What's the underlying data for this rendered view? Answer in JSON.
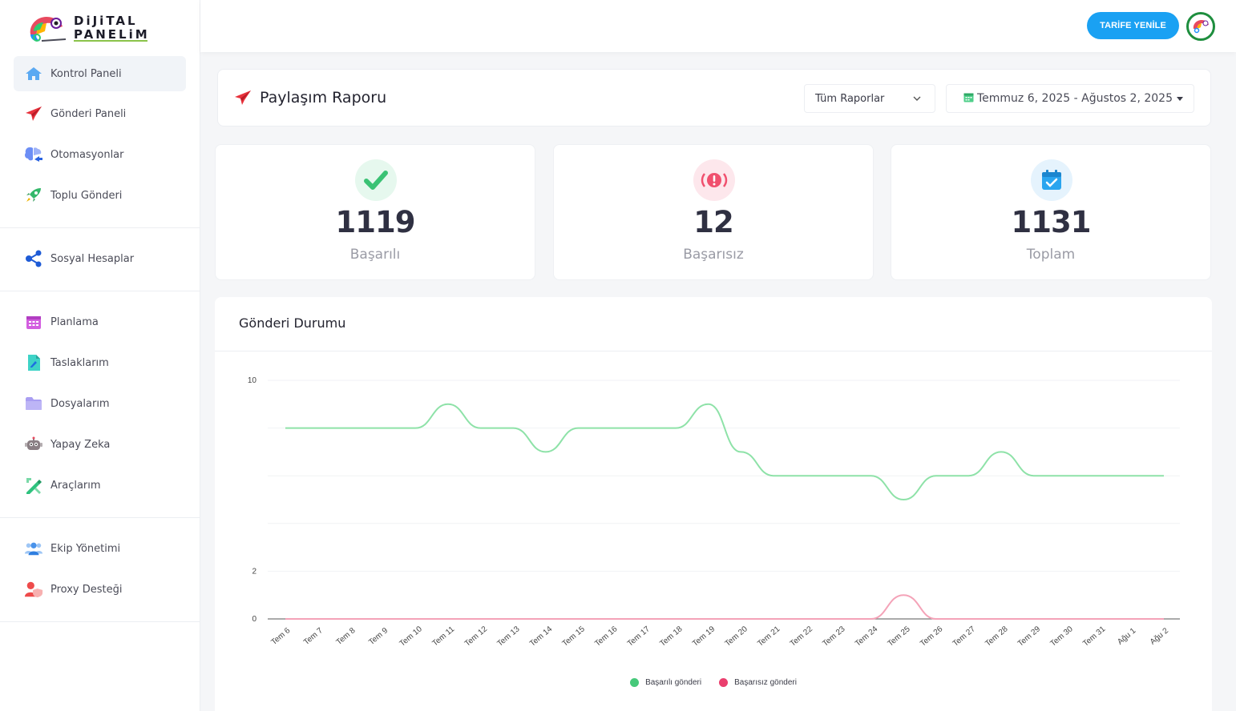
{
  "brand": {
    "line1": "DiJiTAL",
    "line2": "PANELiM"
  },
  "sidebar": {
    "items": [
      {
        "label": "Kontrol Paneli",
        "icon": "home-icon",
        "active": true
      },
      {
        "label": "Gönderi Paneli",
        "icon": "paper-plane-icon"
      },
      {
        "label": "Otomasyonlar",
        "icon": "brain-icon"
      },
      {
        "label": "Toplu Gönderi",
        "icon": "rocket-icon"
      },
      {
        "label": "Sosyal Hesaplar",
        "icon": "share-icon"
      },
      {
        "label": "Planlama",
        "icon": "calendar-icon"
      },
      {
        "label": "Taslaklarım",
        "icon": "draft-file-icon"
      },
      {
        "label": "Dosyalarım",
        "icon": "folder-icon"
      },
      {
        "label": "Yapay Zeka",
        "icon": "robot-icon"
      },
      {
        "label": "Araçlarım",
        "icon": "tools-icon"
      },
      {
        "label": "Ekip Yönetimi",
        "icon": "team-icon"
      },
      {
        "label": "Proxy Desteği",
        "icon": "user-shield-icon"
      }
    ]
  },
  "topbar": {
    "renew_label": "TARİFE YENİLE"
  },
  "report": {
    "title": "Paylaşım Raporu",
    "filter_value": "Tüm Raporlar",
    "date_range": "Temmuz 6, 2025 - Ağustos 2, 2025"
  },
  "stats": [
    {
      "value": "1119",
      "label": "Başarılı",
      "color": "#2ecc71"
    },
    {
      "value": "12",
      "label": "Başarısız",
      "color": "#f0506e"
    },
    {
      "value": "1131",
      "label": "Toplam",
      "color": "#1aa1f3"
    }
  ],
  "chart_data": {
    "type": "line",
    "title": "Gönderi Durumu",
    "categories": [
      "Tem 6",
      "Tem 7",
      "Tem 8",
      "Tem 9",
      "Tem 10",
      "Tem 11",
      "Tem 12",
      "Tem 13",
      "Tem 14",
      "Tem 15",
      "Tem 16",
      "Tem 17",
      "Tem 18",
      "Tem 19",
      "Tem 20",
      "Tem 21",
      "Tem 22",
      "Tem 23",
      "Tem 24",
      "Tem 25",
      "Tem 26",
      "Tem 27",
      "Tem 28",
      "Tem 29",
      "Tem 30",
      "Tem 31",
      "Ağu 1",
      "Ağu 2"
    ],
    "ylim": [
      0,
      10
    ],
    "y_ticks": [
      "0",
      "2",
      "",
      "",
      "",
      "10"
    ],
    "series": [
      {
        "name": "Başarılı gönderi",
        "color": "#8ee2a8",
        "legend_color": "#46c97a",
        "values": [
          8,
          8,
          8,
          8,
          8,
          9,
          8,
          8,
          7,
          8,
          8,
          8,
          8,
          9,
          7,
          6,
          6,
          6,
          6,
          5,
          6,
          6,
          7,
          6,
          6,
          6,
          6,
          6
        ]
      },
      {
        "name": "Başarısız gönderi",
        "color": "#f4a3b8",
        "legend_color": "#ea3f6e",
        "values": [
          0,
          0,
          0,
          0,
          0,
          0,
          0,
          0,
          0,
          0,
          0,
          0,
          0,
          0,
          0,
          0,
          0,
          0,
          0,
          1,
          0,
          0,
          0,
          0,
          0,
          0,
          0,
          0
        ]
      }
    ],
    "grid": true,
    "legend": "bottom"
  }
}
